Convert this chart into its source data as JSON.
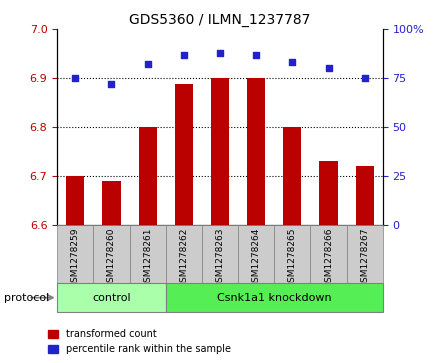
{
  "title": "GDS5360 / ILMN_1237787",
  "samples": [
    "GSM1278259",
    "GSM1278260",
    "GSM1278261",
    "GSM1278262",
    "GSM1278263",
    "GSM1278264",
    "GSM1278265",
    "GSM1278266",
    "GSM1278267"
  ],
  "bar_values": [
    6.7,
    6.69,
    6.8,
    6.888,
    6.9,
    6.9,
    6.8,
    6.73,
    6.72
  ],
  "scatter_values": [
    75,
    72,
    82,
    87,
    88,
    87,
    83,
    80,
    75
  ],
  "bar_color": "#bb0000",
  "scatter_color": "#2222cc",
  "ylim_left": [
    6.6,
    7.0
  ],
  "ylim_right": [
    0,
    100
  ],
  "yticks_left": [
    6.6,
    6.7,
    6.8,
    6.9,
    7.0
  ],
  "yticks_right": [
    0,
    25,
    50,
    75,
    100
  ],
  "yticklabels_right": [
    "0",
    "25",
    "50",
    "75",
    "100%"
  ],
  "grid_values": [
    6.7,
    6.8,
    6.9
  ],
  "n_control": 3,
  "n_knockdown": 6,
  "control_label": "control",
  "knockdown_label": "Csnk1a1 knockdown",
  "protocol_label": "protocol",
  "legend_bar_label": "transformed count",
  "legend_scatter_label": "percentile rank within the sample",
  "control_color": "#aaffaa",
  "knockdown_color": "#55ee55",
  "bar_bottom": 6.6,
  "bar_width": 0.5,
  "xtick_bg": "#cccccc"
}
